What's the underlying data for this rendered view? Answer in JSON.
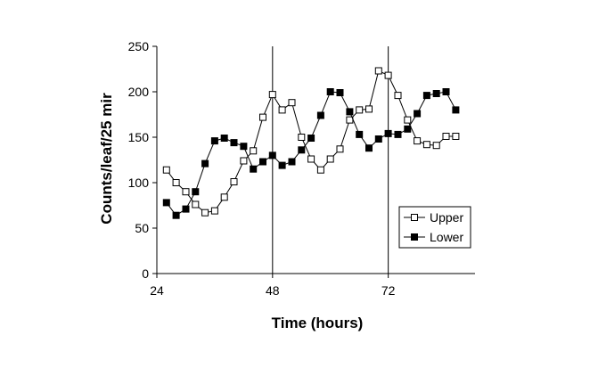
{
  "chart_data": {
    "type": "line",
    "title": "",
    "xlabel": "Time (hours)",
    "ylabel": "Counts/leaf/25 mir",
    "xlim": [
      24,
      90
    ],
    "ylim": [
      0,
      250
    ],
    "xticks": [
      24,
      48,
      72
    ],
    "yticks": [
      0,
      50,
      100,
      150,
      200,
      250
    ],
    "vlines": [
      48,
      72
    ],
    "grid": false,
    "legend_position": "lower-right",
    "series": [
      {
        "name": "Upper",
        "marker": "open-square",
        "color": "#000000",
        "x": [
          26,
          28,
          30,
          32,
          34,
          36,
          38,
          40,
          42,
          44,
          46,
          48,
          50,
          52,
          54,
          56,
          58,
          60,
          62,
          64,
          66,
          68,
          70,
          72,
          74,
          76,
          78,
          80,
          82,
          84,
          86
        ],
        "y": [
          114,
          100,
          90,
          76,
          67,
          69,
          84,
          101,
          124,
          135,
          172,
          197,
          180,
          188,
          150,
          126,
          114,
          126,
          137,
          169,
          180,
          181,
          223,
          218,
          196,
          169,
          146,
          142,
          141,
          151,
          151
        ]
      },
      {
        "name": "Lower",
        "marker": "filled-square",
        "color": "#000000",
        "x": [
          26,
          28,
          30,
          32,
          34,
          36,
          38,
          40,
          42,
          44,
          46,
          48,
          50,
          52,
          54,
          56,
          58,
          60,
          62,
          64,
          66,
          68,
          70,
          72,
          74,
          76,
          78,
          80,
          82,
          84,
          86
        ],
        "y": [
          78,
          64,
          71,
          90,
          121,
          146,
          149,
          144,
          140,
          115,
          123,
          130,
          119,
          123,
          136,
          149,
          174,
          200,
          199,
          178,
          153,
          138,
          148,
          154,
          153,
          159,
          176,
          196,
          198,
          200,
          180
        ]
      }
    ]
  }
}
